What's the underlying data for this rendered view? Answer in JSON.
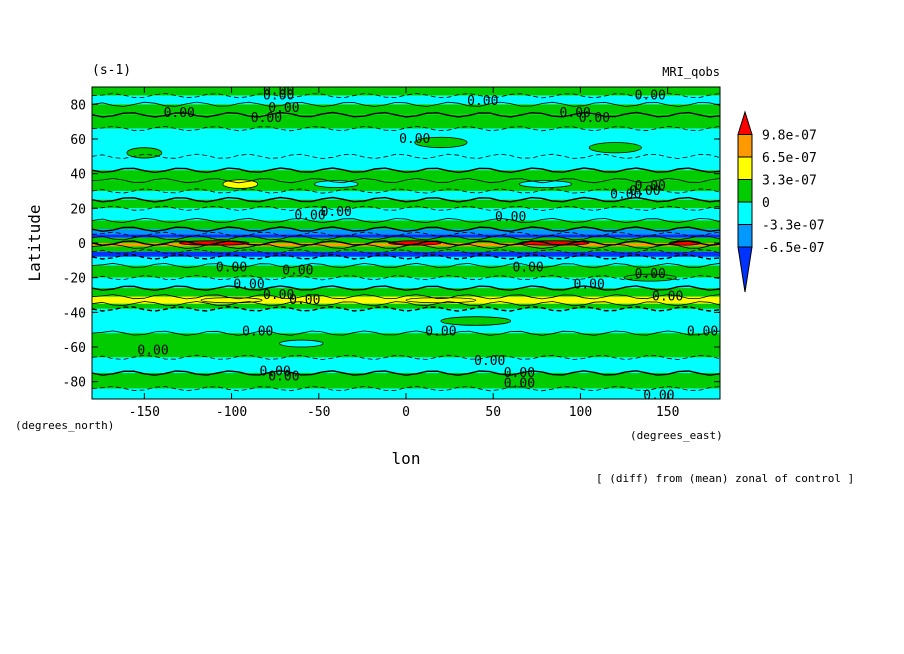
{
  "chart_data": {
    "type": "heatmap",
    "unit_label": "(s-1)",
    "model_label": "MRI_qobs",
    "ylabel": "Latitude",
    "xlabel": "lon",
    "y_units": "(degrees_north)",
    "x_units": "(degrees_east)",
    "footnote": "[ (diff) from (mean) zonal of control ]",
    "xlim": [
      -180,
      180
    ],
    "ylim": [
      -90,
      90
    ],
    "x_ticks": [
      -150,
      -100,
      -50,
      0,
      50,
      100,
      150
    ],
    "x_tick_labels": [
      "-150",
      "-100",
      "-50",
      "0",
      "50",
      "100",
      "150"
    ],
    "y_ticks": [
      -80,
      -60,
      -40,
      -20,
      0,
      20,
      40,
      60,
      80
    ],
    "y_tick_labels": [
      "-80",
      "-60",
      "-40",
      "-20",
      "0",
      "20",
      "40",
      "60",
      "80"
    ],
    "colorbar": {
      "levels": [
        "9.8e-07",
        "6.5e-07",
        "3.3e-07",
        "0",
        "-3.3e-07",
        "-6.5e-07"
      ],
      "colors": [
        "#ff0000",
        "#ff9900",
        "#ffff00",
        "#00cc00",
        "#00ffff",
        "#0099ff",
        "#0033ff"
      ]
    },
    "contour_label": "0.00",
    "bands": [
      {
        "lat_from": 85,
        "lat_to": 90,
        "color": "#00cc00"
      },
      {
        "lat_from": 80,
        "lat_to": 85,
        "color": "#00ffff"
      },
      {
        "lat_from": 74,
        "lat_to": 80,
        "color": "#00cc00"
      },
      {
        "lat_from": 66,
        "lat_to": 74,
        "color": "#00cc00"
      },
      {
        "lat_from": 50,
        "lat_to": 66,
        "color": "#00ffff"
      },
      {
        "lat_from": 42,
        "lat_to": 50,
        "color": "#00ffff"
      },
      {
        "lat_from": 36,
        "lat_to": 42,
        "color": "#00cc00"
      },
      {
        "lat_from": 30,
        "lat_to": 36,
        "color": "#00cc00"
      },
      {
        "lat_from": 25,
        "lat_to": 30,
        "color": "#00ffff"
      },
      {
        "lat_from": 20,
        "lat_to": 25,
        "color": "#00cc00"
      },
      {
        "lat_from": 13,
        "lat_to": 20,
        "color": "#00ffff"
      },
      {
        "lat_from": 8,
        "lat_to": 13,
        "color": "#00cc00"
      },
      {
        "lat_from": 5,
        "lat_to": 8,
        "color": "#0099ff"
      },
      {
        "lat_from": 3,
        "lat_to": 5,
        "color": "#0033ff"
      },
      {
        "lat_from": 0,
        "lat_to": 3,
        "color": "#00cc00"
      },
      {
        "lat_from": -2,
        "lat_to": 0,
        "color": "#ff9900"
      },
      {
        "lat_from": -5,
        "lat_to": -2,
        "color": "#00cc00"
      },
      {
        "lat_from": -8,
        "lat_to": -5,
        "color": "#0033ff"
      },
      {
        "lat_from": -13,
        "lat_to": -8,
        "color": "#00ffff"
      },
      {
        "lat_from": -20,
        "lat_to": -13,
        "color": "#00cc00"
      },
      {
        "lat_from": -26,
        "lat_to": -20,
        "color": "#00ffff"
      },
      {
        "lat_from": -31,
        "lat_to": -26,
        "color": "#00cc00"
      },
      {
        "lat_from": -35,
        "lat_to": -31,
        "color": "#ffff00"
      },
      {
        "lat_from": -38,
        "lat_to": -35,
        "color": "#00cc00"
      },
      {
        "lat_from": -52,
        "lat_to": -38,
        "color": "#00ffff"
      },
      {
        "lat_from": -66,
        "lat_to": -52,
        "color": "#00cc00"
      },
      {
        "lat_from": -75,
        "lat_to": -66,
        "color": "#00ffff"
      },
      {
        "lat_from": -84,
        "lat_to": -75,
        "color": "#00cc00"
      },
      {
        "lat_from": -90,
        "lat_to": -84,
        "color": "#00ffff"
      }
    ],
    "blobs": [
      {
        "lon": -110,
        "lat": 0,
        "w": 40,
        "h": 2.5,
        "color": "#ff0000"
      },
      {
        "lon": 5,
        "lat": 0,
        "w": 30,
        "h": 2.5,
        "color": "#ff0000"
      },
      {
        "lon": 85,
        "lat": 0,
        "w": 40,
        "h": 2.5,
        "color": "#ff0000"
      },
      {
        "lon": 160,
        "lat": 0,
        "w": 18,
        "h": 2.5,
        "color": "#ff0000"
      },
      {
        "lon": -95,
        "lat": 34,
        "w": 20,
        "h": 5,
        "color": "#ffff00"
      },
      {
        "lon": -40,
        "lat": 34,
        "w": 25,
        "h": 4,
        "color": "#00ffff"
      },
      {
        "lon": 80,
        "lat": 34,
        "w": 30,
        "h": 4,
        "color": "#00ffff"
      },
      {
        "lon": -100,
        "lat": -33,
        "w": 35,
        "h": 3,
        "color": "#ffff00"
      },
      {
        "lon": 20,
        "lat": -33,
        "w": 40,
        "h": 3,
        "color": "#ffff00"
      },
      {
        "lon": -150,
        "lat": 52,
        "w": 20,
        "h": 6,
        "color": "#00cc00"
      },
      {
        "lon": 20,
        "lat": 58,
        "w": 30,
        "h": 6,
        "color": "#00cc00"
      },
      {
        "lon": 120,
        "lat": 55,
        "w": 30,
        "h": 6,
        "color": "#00cc00"
      },
      {
        "lon": -60,
        "lat": -58,
        "w": 25,
        "h": 4,
        "color": "#00ffff"
      },
      {
        "lon": 40,
        "lat": -45,
        "w": 40,
        "h": 5,
        "color": "#00cc00"
      },
      {
        "lon": 140,
        "lat": -20,
        "w": 30,
        "h": 4,
        "color": "#00cc00"
      }
    ],
    "contour_labels": [
      {
        "lon": -73,
        "lat": 88
      },
      {
        "lon": -73,
        "lat": 85
      },
      {
        "lon": -70,
        "lat": 78
      },
      {
        "lon": -80,
        "lat": 72
      },
      {
        "lon": -130,
        "lat": 75
      },
      {
        "lon": 44,
        "lat": 82
      },
      {
        "lon": 140,
        "lat": 85
      },
      {
        "lon": 97,
        "lat": 75
      },
      {
        "lon": 108,
        "lat": 72
      },
      {
        "lon": 5,
        "lat": 60
      },
      {
        "lon": -55,
        "lat": 16
      },
      {
        "lon": -40,
        "lat": 18
      },
      {
        "lon": 60,
        "lat": 15
      },
      {
        "lon": 126,
        "lat": 28
      },
      {
        "lon": 140,
        "lat": 33
      },
      {
        "lon": -100,
        "lat": -14
      },
      {
        "lon": -90,
        "lat": -24
      },
      {
        "lon": -62,
        "lat": -16
      },
      {
        "lon": -58,
        "lat": -33
      },
      {
        "lon": 70,
        "lat": -14
      },
      {
        "lon": 105,
        "lat": -24
      },
      {
        "lon": 140,
        "lat": -18
      },
      {
        "lon": 150,
        "lat": -31
      },
      {
        "lon": -85,
        "lat": -51
      },
      {
        "lon": -145,
        "lat": -62
      },
      {
        "lon": 20,
        "lat": -51
      },
      {
        "lon": 48,
        "lat": -68
      },
      {
        "lon": 170,
        "lat": -51
      },
      {
        "lon": -75,
        "lat": -74
      },
      {
        "lon": -70,
        "lat": -77
      },
      {
        "lon": 65,
        "lat": -75
      },
      {
        "lon": 65,
        "lat": -81
      },
      {
        "lon": 145,
        "lat": -88
      },
      {
        "lon": 137,
        "lat": 30
      },
      {
        "lon": -73,
        "lat": -30
      }
    ]
  }
}
